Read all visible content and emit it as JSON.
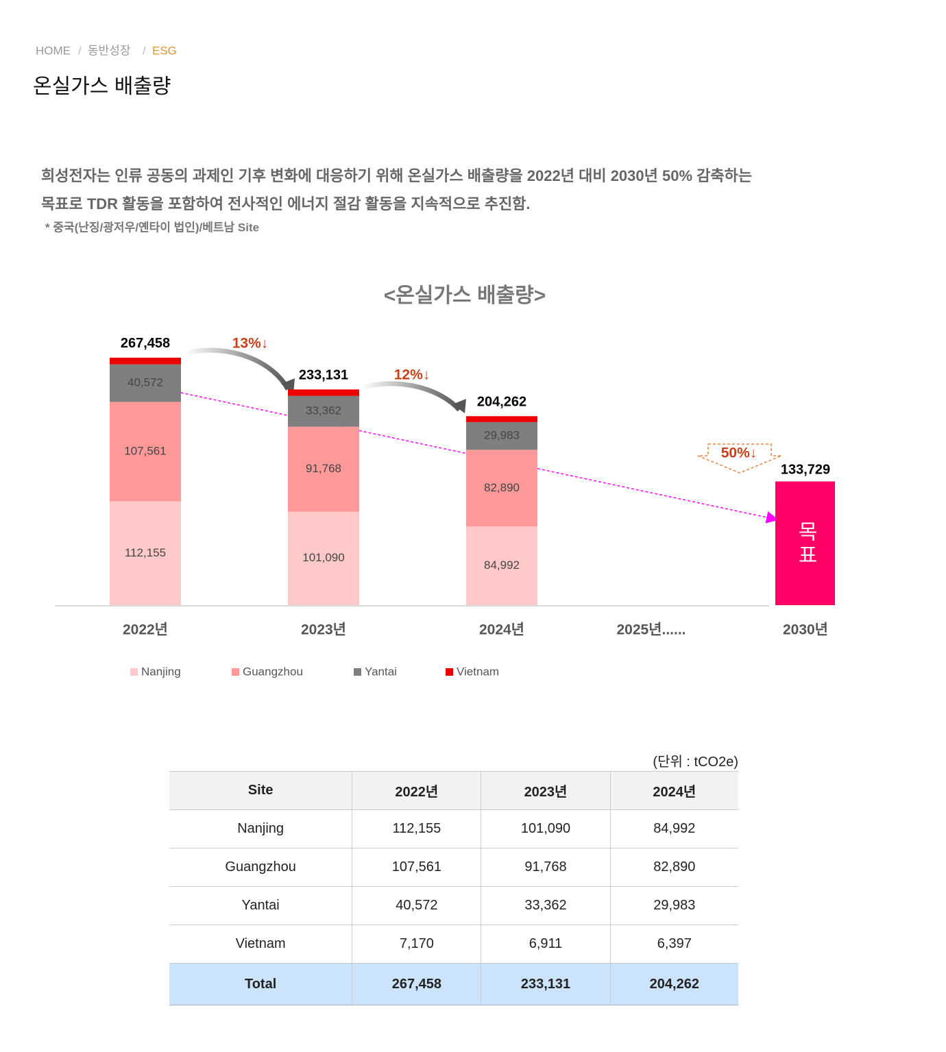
{
  "breadcrumb": [
    "HOME",
    "동반성장",
    "ESG"
  ],
  "title": "온실가스 배출량",
  "description": [
    "희성전자는 인류 공동의 과제인 기후 변화에 대응하기 위해 온실가스 배출량을 2022년 대비 2030년 50% 감축하는",
    "목표로 TDR 활동을 포함하여 전사적인 에너지 절감 활동을 지속적으로 추진함."
  ],
  "note": "* 중국(난징/광저우/옌타이 법인)/베트남 Site",
  "chart_data": {
    "type": "stacked_bar",
    "title": "<온실가스 배출량>",
    "categories": [
      "2022년",
      "2023년",
      "2024년",
      "2025년......",
      "2030년"
    ],
    "ylim": [
      0,
      280000
    ],
    "legend": "bottom",
    "series": [
      {
        "name": "Nanjing",
        "color": "#ffc9c9",
        "values": [
          112155,
          101090,
          84992,
          null,
          null
        ],
        "value_labels": [
          "112,155",
          "101,090",
          "84,992",
          null,
          null
        ]
      },
      {
        "name": "Guangzhou",
        "color": "#ff9999",
        "values": [
          107561,
          91768,
          82890,
          null,
          null
        ],
        "value_labels": [
          "107,561",
          "91,768",
          "82,890",
          null,
          null
        ]
      },
      {
        "name": "Yantai",
        "color": "#7f7f7f",
        "values": [
          40572,
          33362,
          29983,
          null,
          null
        ],
        "value_labels": [
          "40,572",
          "33,362",
          "29,983",
          null,
          null
        ]
      },
      {
        "name": "Vietnam",
        "color": "#ee0000",
        "values": [
          7170,
          6911,
          6397,
          null,
          null
        ]
      }
    ],
    "totals": {
      "values": [
        267458,
        233131,
        204262,
        null,
        null
      ],
      "value_labels": [
        "267,458",
        "233,131",
        "204,262",
        null,
        null
      ]
    },
    "target": {
      "label": "목표",
      "value": 133729,
      "value_label": "133,729",
      "color": "#ff0066"
    },
    "annotations": [
      "13%↓",
      "12%↓",
      "50%↓"
    ]
  },
  "table": {
    "unit": "(단위 : tCO2e)",
    "header": [
      "Site",
      "2022년",
      "2023년",
      "2024년"
    ],
    "rows": [
      [
        "Nanjing",
        "112,155",
        "101,090",
        "84,992"
      ],
      [
        "Guangzhou",
        "107,561",
        "91,768",
        "82,890"
      ],
      [
        "Yantai",
        "40,572",
        "33,362",
        "29,983"
      ],
      [
        "Vietnam",
        "7,170",
        "6,911",
        "6,397"
      ]
    ],
    "total": [
      "Total",
      "267,458",
      "233,131",
      "204,262"
    ]
  }
}
